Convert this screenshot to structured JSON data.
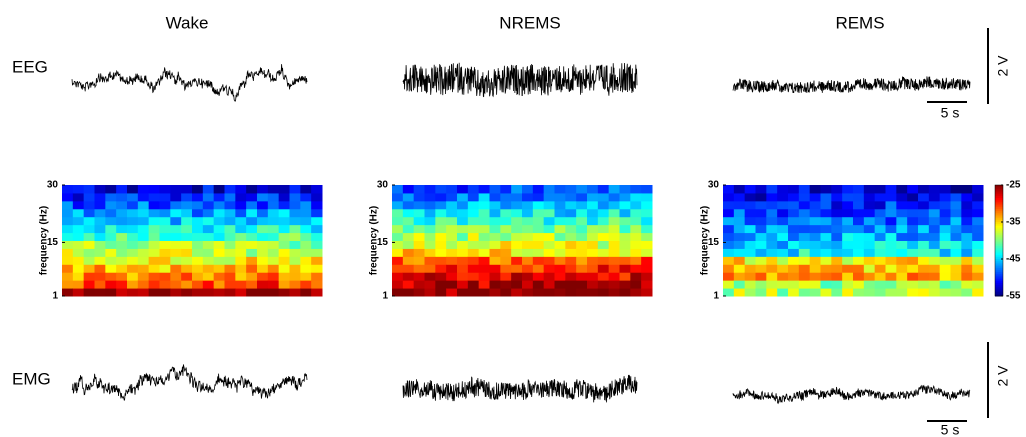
{
  "columns": [
    {
      "title": "Wake"
    },
    {
      "title": "NREMS"
    },
    {
      "title": "REMS"
    }
  ],
  "rows": {
    "eeg": "EEG",
    "emg": "EMG"
  },
  "spectrogram": {
    "y_label": "frequency (Hz)",
    "ylim": [
      1,
      30
    ],
    "yticks": [
      1,
      15,
      30
    ]
  },
  "colorbar": {
    "lim": [
      -55,
      -25
    ],
    "ticks": [
      -25,
      -35,
      -45,
      -55
    ]
  },
  "scale_bars": {
    "eeg_voltage": "2 V",
    "eeg_time": "5 s",
    "emg_voltage": "2 V",
    "emg_time": "5 s"
  }
}
